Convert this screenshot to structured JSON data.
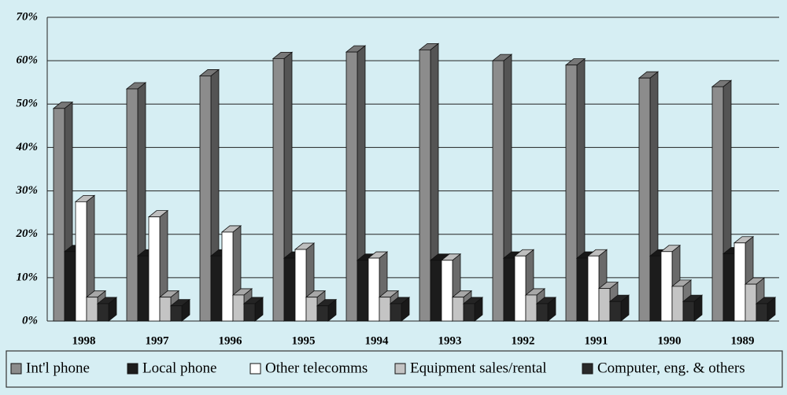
{
  "chart_data": {
    "type": "bar3d",
    "categories": [
      "1998",
      "1997",
      "1996",
      "1995",
      "1994",
      "1993",
      "1992",
      "1991",
      "1990",
      "1989"
    ],
    "series": [
      {
        "name": "Int'l phone",
        "color": "#8c8c8c",
        "values": [
          49,
          53.5,
          56.5,
          60.5,
          62,
          62.5,
          60,
          59,
          56,
          54
        ]
      },
      {
        "name": "Local phone",
        "color": "#1c1c1c",
        "values": [
          16,
          15,
          15,
          14.5,
          14,
          14,
          14.5,
          14.5,
          15,
          15.5
        ]
      },
      {
        "name": "Other telecomms",
        "color": "#ffffff",
        "values": [
          27.5,
          24,
          20.5,
          16.5,
          14.5,
          14,
          15,
          15,
          16,
          18
        ]
      },
      {
        "name": "Equipment sales/rental",
        "color": "#c4c4c4",
        "values": [
          5.5,
          5.5,
          6,
          5.5,
          5.5,
          5.5,
          6,
          7.5,
          8,
          8.5
        ]
      },
      {
        "name": "Computer, eng. & others",
        "color": "#2a2a2a",
        "values": [
          4,
          3.5,
          4,
          3.5,
          4,
          4,
          4,
          4.5,
          4.5,
          4
        ]
      }
    ],
    "ylim": [
      0,
      70
    ],
    "yticks": [
      {
        "value": 0,
        "label": "0%"
      },
      {
        "value": 10,
        "label": "10%"
      },
      {
        "value": 20,
        "label": "20%"
      },
      {
        "value": 30,
        "label": "30%"
      },
      {
        "value": 40,
        "label": "40%"
      },
      {
        "value": 50,
        "label": "50%"
      },
      {
        "value": 60,
        "label": "60%"
      },
      {
        "value": 70,
        "label": "70%"
      }
    ],
    "grid": true,
    "legend": "bottom"
  }
}
